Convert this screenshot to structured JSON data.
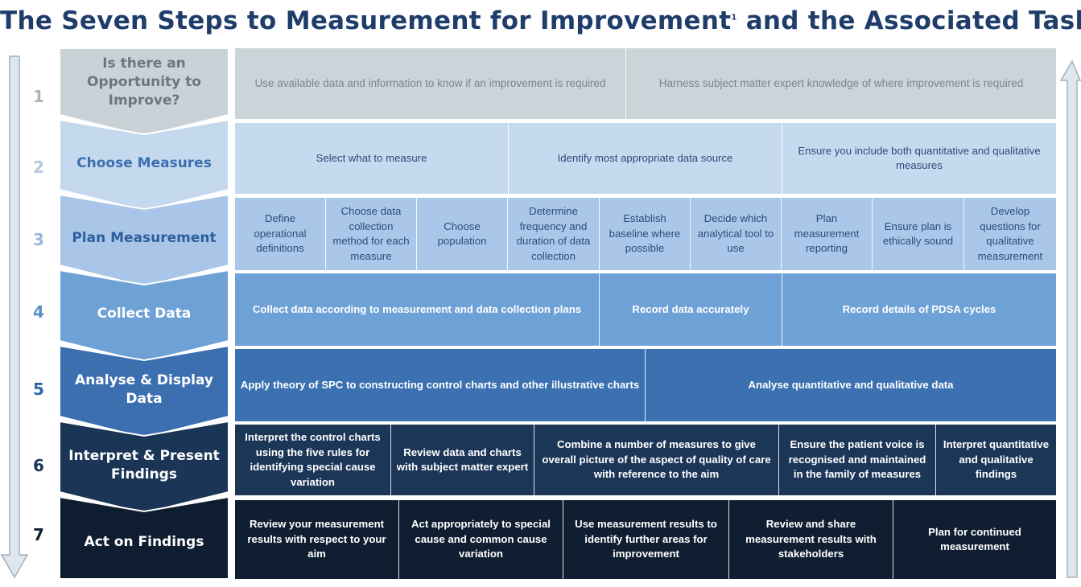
{
  "title": {
    "main": "The Seven Steps to Measurement for Improvement",
    "superscript": "1",
    "rest": " and the Associated Tasks"
  },
  "steps": [
    {
      "number": "1",
      "label": "Is there an Opportunity to Improve?",
      "color": "#c9d2d6",
      "text_color": "#6b7780",
      "num_color": "#aab4ba"
    },
    {
      "number": "2",
      "label": "Choose Measures",
      "color": "#c5d9ee",
      "text_color": "#3a6fb0",
      "num_color": "#b5c8dc"
    },
    {
      "number": "3",
      "label": "Plan Measurement",
      "color": "#a9c6e8",
      "text_color": "#2d5f9e",
      "num_color": "#99b7d9"
    },
    {
      "number": "4",
      "label": "Collect Data",
      "color": "#6ea1d6",
      "text_color": "#ffffff",
      "num_color": "#5b8fc8"
    },
    {
      "number": "5",
      "label": "Analyse & Display Data",
      "color": "#3b6fb0",
      "text_color": "#ffffff",
      "num_color": "#2f63a8"
    },
    {
      "number": "6",
      "label": "Interpret & Present Findings",
      "color": "#1b3557",
      "text_color": "#ffffff",
      "num_color": "#1b3557"
    },
    {
      "number": "7",
      "label": "Act on Findings",
      "color": "#0e1d30",
      "text_color": "#ffffff",
      "num_color": "#0e1d30"
    }
  ],
  "tasks": [
    {
      "row_color": "#cbd4d8",
      "text_color": "#7a868d",
      "bold": false,
      "cells": [
        "Use available data and information to know if an improvement is required",
        "Harness subject matter expert knowledge of where improvement is required"
      ]
    },
    {
      "row_color": "#c6daef",
      "text_color": "#2b4c78",
      "bold": false,
      "cells": [
        "Select what to measure",
        "Identify most appropriate data source",
        "Ensure you include both quantitative and qualitative measures"
      ]
    },
    {
      "row_color": "#aac7e9",
      "text_color": "#2b4c78",
      "bold": false,
      "cells": [
        "Define operational definitions",
        "Choose data collection method for each measure",
        "Choose population",
        "Determine frequency and duration of data collection",
        "Establish baseline where possible",
        "Decide which analytical tool to use",
        "Plan measurement reporting",
        "Ensure plan is ethically sound",
        "Develop questions for qualitative measurement"
      ]
    },
    {
      "row_color": "#6ea2d7",
      "text_color": "#ffffff",
      "bold": true,
      "cells": [
        "Collect data according to measurement and  data collection plans",
        "Record data accurately",
        "Record details of PDSA cycles"
      ]
    },
    {
      "row_color": "#3b70b1",
      "text_color": "#ffffff",
      "bold": true,
      "cells": [
        "Apply theory of SPC to constructing control charts and other illustrative charts",
        "Analyse  quantitative and qualitative data"
      ]
    },
    {
      "row_color": "#1c3658",
      "text_color": "#ffffff",
      "bold": true,
      "cells": [
        "Interpret the control charts using the five rules for identifying special cause variation",
        "Review data  and charts with subject matter expert",
        "Combine a number of measures to give overall picture of the aspect of quality of care with reference to the aim",
        "Ensure the patient voice is recognised and maintained in the family of measures",
        "Interpret quantitative and qualitative findings"
      ]
    },
    {
      "row_color": "#0f1e31",
      "text_color": "#ffffff",
      "bold": true,
      "cells": [
        "Review your measurement results with respect to your aim",
        "Act appropriately to special cause and common cause variation",
        "Use measurement results to identify further areas for improvement",
        "Review and share measurement results with stakeholders",
        "Plan for continued measurement"
      ]
    }
  ],
  "arrows": {
    "left": "down-arrow",
    "right": "up-arrow",
    "color": "#dfe6ec",
    "stroke": "#9fb0bf"
  }
}
